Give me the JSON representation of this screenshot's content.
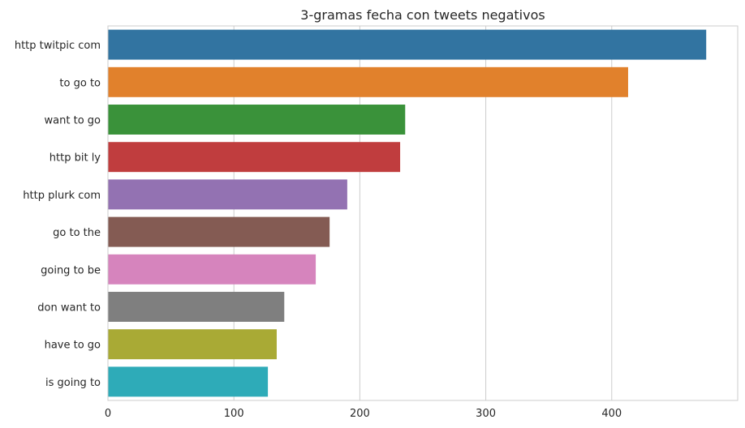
{
  "chart_data": {
    "type": "bar",
    "orientation": "horizontal",
    "title": "3-gramas fecha con tweets negativos",
    "xlabel": "",
    "ylabel": "",
    "categories": [
      "http twitpic com",
      "to go to",
      "want to go",
      "http bit ly",
      "http plurk com",
      "go to the",
      "going to be",
      "don want to",
      "have to go",
      "is going to"
    ],
    "values": [
      475,
      413,
      236,
      232,
      190,
      176,
      165,
      140,
      134,
      127
    ],
    "colors": [
      "#3274a1",
      "#e1812c",
      "#3a923a",
      "#c03d3e",
      "#9372b2",
      "#845b53",
      "#d684bd",
      "#7f7f7f",
      "#a9aa35",
      "#2eabb8"
    ],
    "xlim": [
      0,
      500
    ],
    "xticks": [
      0,
      100,
      200,
      300,
      400
    ],
    "grid": "vertical",
    "legend": "none"
  }
}
